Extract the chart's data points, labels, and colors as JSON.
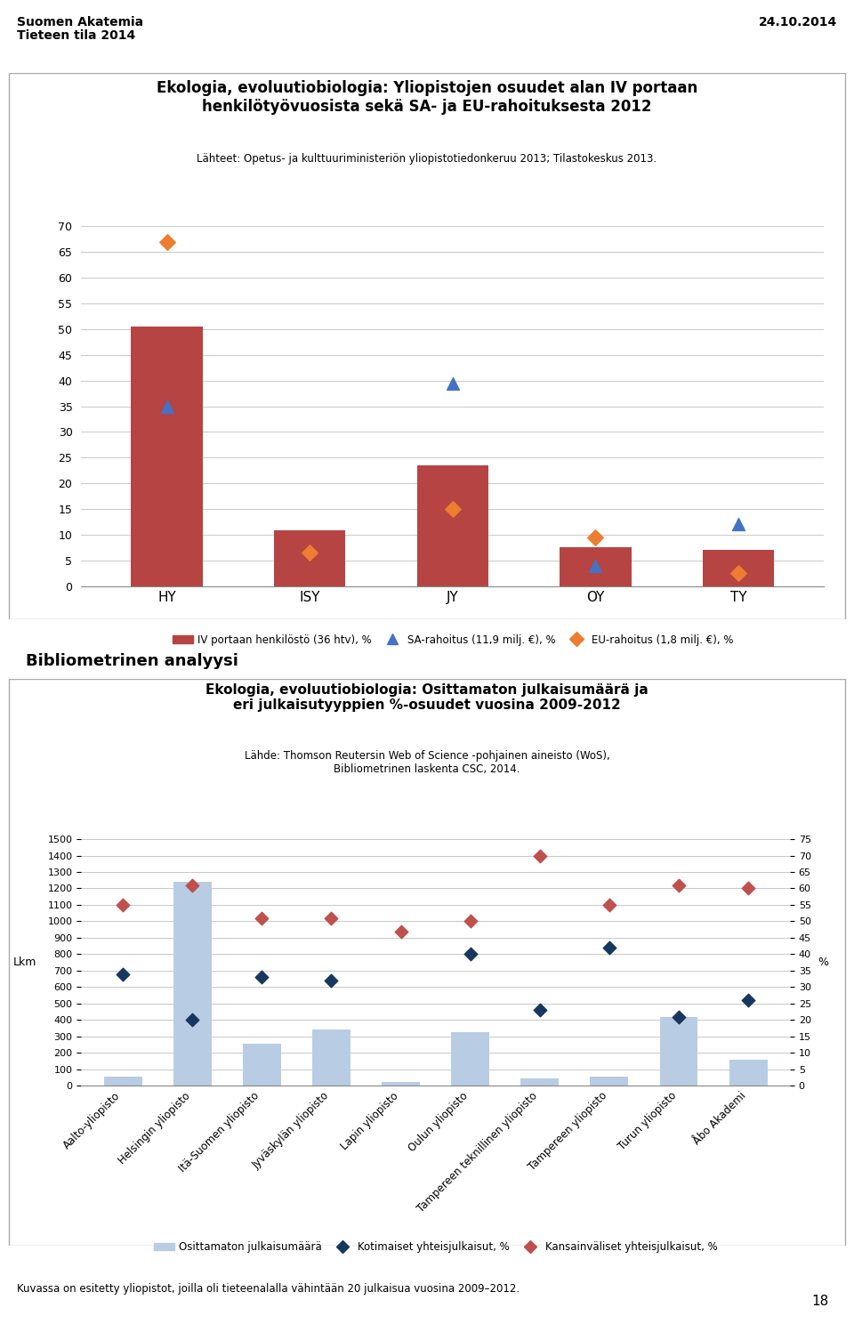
{
  "header_left": "Suomen Akatemia\nTieteen tila 2014",
  "header_right": "24.10.2014",
  "page_number": "18",
  "chart1": {
    "title_line1": "Ekologia, evoluutiobiologia: Yliopistojen osuudet alan IV portaan",
    "title_line2": "henkilötyövuosista sekä SA- ja EU-rahoituksesta 2012",
    "subtitle": "Lähteet: Opetus- ja kulttuuriministeriön yliopistotiedonkeruu 2013; Tilastokeskus 2013.",
    "categories": [
      "HY",
      "ISY",
      "JY",
      "OY",
      "TY"
    ],
    "bar_values": [
      50.5,
      10.8,
      23.5,
      7.5,
      7.0
    ],
    "sa_values": [
      35.0,
      null,
      39.5,
      4.0,
      12.0
    ],
    "eu_values": [
      67.0,
      6.5,
      15.0,
      9.5,
      2.5
    ],
    "bar_color": "#B54442",
    "sa_color": "#4472C4",
    "eu_color": "#ED7D31",
    "ylim": [
      0,
      70
    ],
    "yticks": [
      0,
      5,
      10,
      15,
      20,
      25,
      30,
      35,
      40,
      45,
      50,
      55,
      60,
      65,
      70
    ],
    "legend_bar": "IV portaan henkilöstö (36 htv), %",
    "legend_sa": "SA-rahoitus (11,9 milj. €), %",
    "legend_eu": "EU-rahoitus (1,8 milj. €), %"
  },
  "section_title": "Bibliometrinen analyysi",
  "chart2": {
    "title_line1": "Ekologia, evoluutiobiologia: Osittamaton julkaisumäärä ja",
    "title_line2": "eri julkaisutyyppien %-osuudet vuosina 2009-2012",
    "subtitle": "Lähde: Thomson Reutersin Web of Science -pohjainen aineisto (WoS),\nBibliometrinen laskenta CSC, 2014.",
    "universities": [
      "Aalto-yliopisto",
      "Helsingin yliopisto",
      "Itä-Suomen yliopisto",
      "Jyväskylän yliopisto",
      "Lapin yliopisto",
      "Oulun yliopisto",
      "Tampereen teknillinen yliopisto",
      "Tampereen yliopisto",
      "Turun yliopisto",
      "Åbo Akademi"
    ],
    "pub_counts": [
      55,
      1240,
      255,
      340,
      20,
      325,
      45,
      55,
      420,
      155
    ],
    "domestic_pct": [
      34,
      20,
      33,
      32,
      null,
      40,
      23,
      42,
      21,
      26
    ],
    "intl_pct": [
      55,
      61,
      51,
      51,
      47,
      50,
      70,
      55,
      61,
      60
    ],
    "bar_color": "#B8CCE4",
    "domestic_color": "#17375E",
    "intl_color": "#C0504D",
    "ylabel_left": "Lkm",
    "ylabel_right": "%",
    "ylim_left": [
      0,
      1500
    ],
    "ylim_right": [
      0,
      75
    ],
    "yticks_left": [
      0,
      100,
      200,
      300,
      400,
      500,
      600,
      700,
      800,
      900,
      1000,
      1100,
      1200,
      1300,
      1400,
      1500
    ],
    "yticks_right": [
      0,
      5,
      10,
      15,
      20,
      25,
      30,
      35,
      40,
      45,
      50,
      55,
      60,
      65,
      70,
      75
    ],
    "legend_pub": "Osittamaton julkaisumäärä",
    "legend_domestic": "Kotimaiset yhteisjulkaisut, %",
    "legend_intl": "Kansainväliset yhteisjulkaisut, %"
  },
  "footer": "Kuvassa on esitetty yliopistot, joilla oli tieteenalalla vähintään 20 julkaisua vuosina 2009–2012."
}
